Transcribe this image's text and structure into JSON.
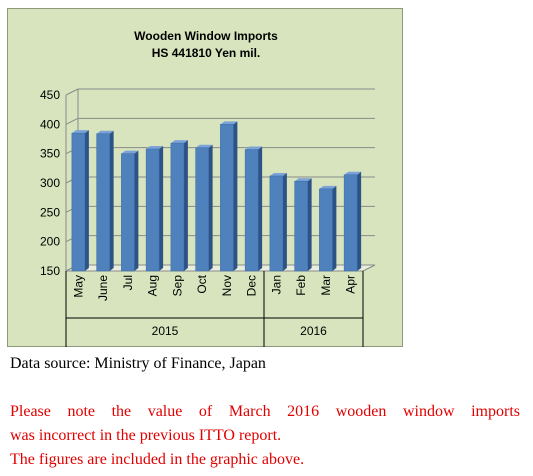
{
  "chart_data": {
    "type": "bar",
    "title": "Wooden Window Imports",
    "subtitle": "HS 441810 Yen mil.",
    "categories": [
      "May",
      "June",
      "Jul",
      "Aug",
      "Sep",
      "Oct",
      "Nov",
      "Dec",
      "Jan",
      "Feb",
      "Mar",
      "Apr"
    ],
    "groups": [
      {
        "label": "2015",
        "categories": [
          "May",
          "June",
          "Jul",
          "Aug",
          "Sep",
          "Oct",
          "Nov",
          "Dec"
        ]
      },
      {
        "label": "2016",
        "categories": [
          "Jan",
          "Feb",
          "Mar",
          "Apr"
        ]
      }
    ],
    "values": [
      385,
      384,
      350,
      358,
      368,
      360,
      400,
      357,
      312,
      303,
      290,
      314
    ],
    "yticks": [
      150,
      200,
      250,
      300,
      350,
      400,
      450
    ],
    "ylim": [
      150,
      450
    ],
    "grid": true,
    "bar_color": "#4f81bd"
  },
  "source": "Data source: Ministry of Finance, Japan",
  "notes": [
    "Please note the value of March 2016 wooden window imports",
    "was incorrect in the previous ITTO report.",
    "The figures are included in the graphic above."
  ],
  "note_color": "#e00000"
}
